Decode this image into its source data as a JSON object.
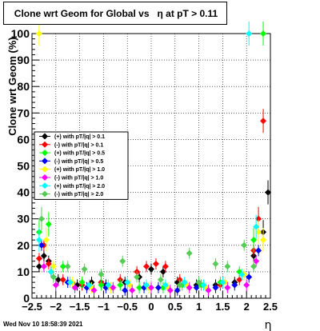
{
  "chart_data": {
    "type": "scatter",
    "title": "Clone wrt Geom for Global vs   η at pT > 0.11",
    "xlabel": "η",
    "ylabel": "Clone wrt Geom (%)",
    "xlim": [
      -2.5,
      2.5
    ],
    "ylim": [
      0,
      100
    ],
    "x_ticks": [
      "−2.5",
      "−2",
      "−1.5",
      "−1",
      "−0.5",
      "0",
      "0.5",
      "1",
      "1.5",
      "2",
      "2.5"
    ],
    "y_ticks": [
      "0",
      "10",
      "20",
      "30",
      "40",
      "50",
      "60",
      "70",
      "80",
      "90",
      "100"
    ],
    "grid": true,
    "legend_position": "left-middle",
    "datestamp": "Wed Nov 10 18:58:39 2021",
    "series": [
      {
        "name": "(+) with pT/|q| > 0.1",
        "color": "#000000",
        "points": [
          [
            -2.35,
            12
          ],
          [
            -2.25,
            16
          ],
          [
            -2.15,
            14
          ],
          [
            -1.95,
            7
          ],
          [
            -1.55,
            5
          ],
          [
            -1.25,
            6
          ],
          [
            -0.95,
            5
          ],
          [
            -0.55,
            6
          ],
          [
            -0.25,
            8
          ],
          [
            0.0,
            11
          ],
          [
            0.25,
            10
          ],
          [
            0.55,
            6
          ],
          [
            0.95,
            5
          ],
          [
            1.35,
            5
          ],
          [
            1.75,
            6
          ],
          [
            2.15,
            16
          ],
          [
            2.35,
            25
          ],
          [
            2.45,
            40
          ]
        ]
      },
      {
        "name": "(-) with pT/|q| > 0.1",
        "color": "#ff0000",
        "points": [
          [
            -2.35,
            15
          ],
          [
            -2.25,
            20
          ],
          [
            -2.15,
            13
          ],
          [
            -1.85,
            7
          ],
          [
            -1.45,
            5
          ],
          [
            -1.05,
            6
          ],
          [
            -0.65,
            7
          ],
          [
            -0.3,
            10
          ],
          [
            -0.1,
            12
          ],
          [
            0.1,
            13
          ],
          [
            0.3,
            12
          ],
          [
            0.6,
            7
          ],
          [
            1.05,
            5
          ],
          [
            1.45,
            5
          ],
          [
            1.85,
            7
          ],
          [
            2.15,
            18
          ],
          [
            2.25,
            30
          ],
          [
            2.35,
            67
          ]
        ]
      },
      {
        "name": "(+) with pT/|q| > 0.5",
        "color": "#00ff00",
        "points": [
          [
            -2.35,
            25
          ],
          [
            -2.15,
            28
          ],
          [
            -1.85,
            12
          ],
          [
            -1.45,
            6
          ],
          [
            -1.05,
            5
          ],
          [
            -0.65,
            5
          ],
          [
            -0.25,
            4
          ],
          [
            0.25,
            4
          ],
          [
            0.65,
            5
          ],
          [
            1.05,
            5
          ],
          [
            1.45,
            6
          ],
          [
            1.85,
            10
          ],
          [
            2.15,
            22
          ],
          [
            2.35,
            100
          ]
        ]
      },
      {
        "name": "(-) with pT/|q| > 0.5",
        "color": "#0000ff",
        "points": [
          [
            -2.3,
            20
          ],
          [
            -2.1,
            10
          ],
          [
            -1.75,
            6
          ],
          [
            -1.35,
            4
          ],
          [
            -0.95,
            4
          ],
          [
            -0.55,
            3
          ],
          [
            -0.15,
            4
          ],
          [
            0.15,
            4
          ],
          [
            0.55,
            3
          ],
          [
            0.95,
            4
          ],
          [
            1.35,
            4
          ],
          [
            1.75,
            5
          ],
          [
            2.05,
            8
          ],
          [
            2.25,
            18
          ]
        ]
      },
      {
        "name": "(+) with pT/|q| > 1.0",
        "color": "#ffff00",
        "points": [
          [
            -2.35,
            100
          ],
          [
            -2.2,
            22
          ],
          [
            -2.05,
            12
          ],
          [
            -1.65,
            6
          ],
          [
            -1.25,
            4
          ],
          [
            -0.85,
            4
          ],
          [
            -0.45,
            5
          ],
          [
            -0.05,
            4
          ],
          [
            0.35,
            4
          ],
          [
            0.75,
            5
          ],
          [
            1.15,
            4
          ],
          [
            1.55,
            6
          ],
          [
            1.95,
            9
          ],
          [
            2.25,
            25
          ],
          [
            2.35,
            22
          ]
        ]
      },
      {
        "name": "(-) with pT/|q| > 1.0",
        "color": "#ff00ff",
        "points": [
          [
            -2.25,
            12
          ],
          [
            -2.0,
            5
          ],
          [
            -1.6,
            4
          ],
          [
            -1.2,
            3
          ],
          [
            -0.8,
            4
          ],
          [
            -0.4,
            3
          ],
          [
            0.0,
            4
          ],
          [
            0.4,
            3
          ],
          [
            0.8,
            4
          ],
          [
            1.2,
            3
          ],
          [
            1.6,
            4
          ],
          [
            2.0,
            5
          ],
          [
            2.2,
            14
          ]
        ]
      },
      {
        "name": "(+) with pT/|q| > 2.0",
        "color": "#00ffff",
        "points": [
          [
            -2.35,
            22
          ],
          [
            -2.1,
            10
          ],
          [
            -1.7,
            6
          ],
          [
            -1.3,
            5
          ],
          [
            -0.9,
            5
          ],
          [
            -0.5,
            6
          ],
          [
            -0.1,
            5
          ],
          [
            0.3,
            5
          ],
          [
            0.7,
            6
          ],
          [
            1.1,
            5
          ],
          [
            1.5,
            6
          ],
          [
            1.9,
            9
          ],
          [
            2.05,
            100
          ],
          [
            2.2,
            27
          ]
        ]
      },
      {
        "name": "(-) with pT/|q| > 2.0",
        "color": "#55cc55",
        "points": [
          [
            -2.3,
            30
          ],
          [
            -2.05,
            8
          ],
          [
            -1.75,
            12
          ],
          [
            -1.4,
            11
          ],
          [
            -1.05,
            9
          ],
          [
            -0.6,
            14
          ],
          [
            -0.3,
            8
          ],
          [
            0.2,
            7
          ],
          [
            0.6,
            5
          ],
          [
            0.8,
            17
          ],
          [
            1.0,
            6
          ],
          [
            1.35,
            13
          ],
          [
            1.6,
            12
          ],
          [
            1.95,
            20
          ],
          [
            2.15,
            12
          ]
        ]
      }
    ]
  }
}
